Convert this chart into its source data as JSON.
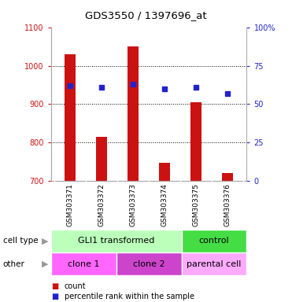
{
  "title": "GDS3550 / 1397696_at",
  "samples": [
    "GSM303371",
    "GSM303372",
    "GSM303373",
    "GSM303374",
    "GSM303375",
    "GSM303376"
  ],
  "bar_values": [
    1030,
    815,
    1050,
    748,
    905,
    722
  ],
  "bar_bottom": 700,
  "percentile_values": [
    62,
    61,
    63,
    60,
    61,
    57
  ],
  "ylim_left": [
    700,
    1100
  ],
  "ylim_right": [
    0,
    100
  ],
  "yticks_left": [
    700,
    800,
    900,
    1000,
    1100
  ],
  "yticks_right": [
    0,
    25,
    50,
    75,
    100
  ],
  "bar_color": "#cc1111",
  "marker_color": "#2222cc",
  "cell_type_labels": [
    {
      "text": "GLI1 transformed",
      "span": [
        0,
        4
      ],
      "color": "#bbffbb"
    },
    {
      "text": "control",
      "span": [
        4,
        6
      ],
      "color": "#44dd44"
    }
  ],
  "other_labels": [
    {
      "text": "clone 1",
      "span": [
        0,
        2
      ],
      "color": "#ff66ff"
    },
    {
      "text": "clone 2",
      "span": [
        2,
        4
      ],
      "color": "#cc44cc"
    },
    {
      "text": "parental cell",
      "span": [
        4,
        6
      ],
      "color": "#ffaaff"
    }
  ],
  "legend_count_color": "#cc1111",
  "legend_pct_color": "#2222cc",
  "left_label_color": "#cc1111",
  "right_label_color": "#2222cc",
  "background_color": "#ffffff",
  "plot_bg_color": "#ffffff",
  "grid_color": "#000000",
  "sample_bg_color": "#cccccc"
}
